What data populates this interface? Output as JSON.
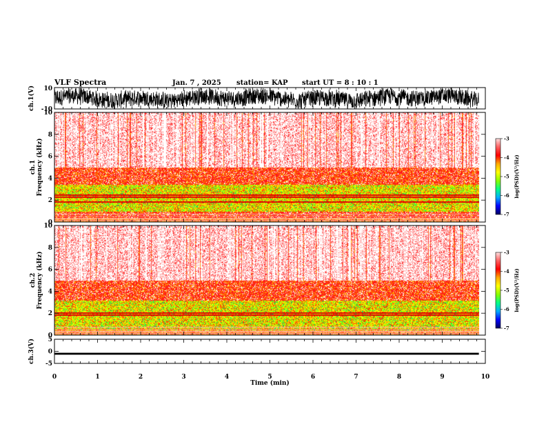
{
  "header": {
    "title": "VLF Spectra",
    "date": "Jan. 7 , 2025",
    "station": "station= KAP",
    "start": "start  UT =  8 : 10 : 1"
  },
  "colorbar": {
    "label": "log(PSD)(V²/Hz)",
    "ticks": [
      "-3",
      "-4",
      "-5",
      "-6",
      "-7"
    ],
    "colors": [
      "#000060",
      "#0000ff",
      "#00aaff",
      "#00ff88",
      "#88ff00",
      "#ffff00",
      "#ffaa00",
      "#ff0000",
      "#ff6060",
      "#ffe0e0"
    ]
  },
  "chart_data": [
    {
      "type": "line",
      "panel": "ch1-waveform",
      "ylabel": "ch.1(V)",
      "ylim": [
        -10,
        10
      ],
      "yticks": [
        "10",
        "-10"
      ],
      "x_range_min": [
        0,
        9.85
      ],
      "description_values": "dense oscillating waveform filling most of the -10..10 range"
    },
    {
      "type": "heatmap",
      "panel": "ch1-spectrogram",
      "ylabel": "ch.1\nFrequency (kHz)",
      "ylim": [
        0,
        10
      ],
      "yticks": [
        "0",
        "2",
        "4",
        "6",
        "8",
        "10"
      ],
      "x_range_min": [
        0,
        9.85
      ],
      "bands": [
        {
          "from_khz": 0,
          "to_khz": 0.4,
          "level": "orange"
        },
        {
          "from_khz": 0.4,
          "to_khz": 1.0,
          "level": "red"
        },
        {
          "from_khz": 1.0,
          "to_khz": 3.4,
          "level": "yellow-green"
        },
        {
          "from_khz": 3.4,
          "to_khz": 5.0,
          "level": "red"
        },
        {
          "from_khz": 5.0,
          "to_khz": 10.0,
          "level": "light-red"
        }
      ],
      "lines_khz": [
        1.9,
        2.3,
        2.5
      ]
    },
    {
      "type": "heatmap",
      "panel": "ch2-spectrogram",
      "ylabel": "ch.2\nFrequency (kHz)",
      "ylim": [
        0,
        10
      ],
      "yticks": [
        "0",
        "2",
        "4",
        "6",
        "8",
        "10"
      ],
      "x_range_min": [
        0,
        9.85
      ],
      "bands": [
        {
          "from_khz": 0,
          "to_khz": 0.5,
          "level": "orange"
        },
        {
          "from_khz": 0.5,
          "to_khz": 3.2,
          "level": "yellow-green"
        },
        {
          "from_khz": 3.2,
          "to_khz": 5.0,
          "level": "red"
        },
        {
          "from_khz": 5.0,
          "to_khz": 10.0,
          "level": "light-red"
        }
      ],
      "lines_khz": [
        1.9,
        2.1
      ]
    },
    {
      "type": "line",
      "panel": "ch3-waveform",
      "ylabel": "ch.3(V)",
      "ylim": [
        -5,
        5
      ],
      "yticks": [
        "5",
        "0",
        "-5"
      ],
      "x_range_min": [
        0,
        9.85
      ],
      "description_values": "flat thick trace near -1 V"
    }
  ],
  "xaxis": {
    "label": "Time  (min)",
    "ticks": [
      "0",
      "1",
      "2",
      "3",
      "4",
      "5",
      "6",
      "7",
      "8",
      "9",
      "10"
    ],
    "xlim": [
      0,
      10
    ]
  }
}
